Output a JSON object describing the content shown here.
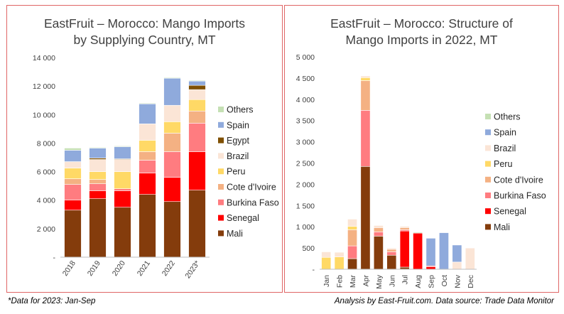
{
  "footnote": "*Data for 2023: Jan-Sep",
  "source": "Analysis by East-Fruit.com. Data source: Trade Data Monitor",
  "chart_data": [
    {
      "type": "bar",
      "stacked": true,
      "title_lines": [
        "EastFruit – Morocco: Mango Imports",
        "by Supplying Country, MT"
      ],
      "categories": [
        "2018",
        "2019",
        "2020",
        "2021",
        "2022",
        "2023*"
      ],
      "ylim": [
        0,
        14000
      ],
      "yticks": [
        0,
        2000,
        4000,
        6000,
        8000,
        10000,
        12000,
        14000
      ],
      "ytick_labels": [
        "-",
        "2 000",
        "4 000",
        "6 000",
        "8 000",
        "10 000",
        "12 000",
        "14 000"
      ],
      "legend_position": "right",
      "series": [
        {
          "name": "Mali",
          "color": "#843c0c",
          "values": [
            3300,
            4100,
            3500,
            4400,
            3900,
            4700
          ]
        },
        {
          "name": "Senegal",
          "color": "#ff0000",
          "values": [
            700,
            550,
            1150,
            1500,
            1700,
            2700
          ]
        },
        {
          "name": "Burkina Faso",
          "color": "#ff7c80",
          "values": [
            1100,
            500,
            150,
            900,
            1800,
            2000
          ]
        },
        {
          "name": "Cote d'Ivoire",
          "color": "#f4b183",
          "values": [
            400,
            300,
            0,
            600,
            1300,
            850
          ]
        },
        {
          "name": "Peru",
          "color": "#ffd966",
          "values": [
            750,
            550,
            1200,
            800,
            800,
            800
          ]
        },
        {
          "name": "Brazil",
          "color": "#fbe5d6",
          "values": [
            450,
            850,
            850,
            1150,
            1150,
            700
          ]
        },
        {
          "name": "Egypt",
          "color": "#7f4f00",
          "values": [
            0,
            100,
            50,
            0,
            0,
            300
          ]
        },
        {
          "name": "Spain",
          "color": "#8faadc",
          "values": [
            800,
            700,
            850,
            1400,
            1900,
            300
          ]
        },
        {
          "name": "Others",
          "color": "#c5e0b4",
          "values": [
            150,
            50,
            50,
            50,
            50,
            50
          ]
        }
      ]
    },
    {
      "type": "bar",
      "stacked": true,
      "title_lines": [
        "EastFruit – Morocco: Structure of",
        "Mango Imports in 2022, MT"
      ],
      "categories": [
        "Jan",
        "Feb",
        "Mar",
        "Apr",
        "May",
        "Jun",
        "Jul",
        "Aug",
        "Sep",
        "Oct",
        "Nov",
        "Dec"
      ],
      "ylim": [
        0,
        5000
      ],
      "yticks": [
        0,
        500,
        1000,
        1500,
        2000,
        2500,
        3000,
        3500,
        4000,
        4500,
        5000
      ],
      "ytick_labels": [
        "-",
        "500",
        "1 000",
        "1 500",
        "2 000",
        "2 500",
        "3 000",
        "3 500",
        "4 000",
        "4 500",
        "5 000"
      ],
      "legend_position": "right",
      "series": [
        {
          "name": "Mali",
          "color": "#843c0c",
          "values": [
            0,
            0,
            250,
            2420,
            780,
            330,
            50,
            0,
            0,
            0,
            0,
            0
          ]
        },
        {
          "name": "Senegal",
          "color": "#ff0000",
          "values": [
            0,
            0,
            0,
            0,
            0,
            0,
            850,
            850,
            60,
            0,
            0,
            0
          ]
        },
        {
          "name": "Burkina Faso",
          "color": "#ff7c80",
          "values": [
            0,
            0,
            300,
            1320,
            100,
            80,
            30,
            0,
            20,
            0,
            0,
            0
          ]
        },
        {
          "name": "Cote d'Ivoire",
          "color": "#f4b183",
          "values": [
            0,
            0,
            380,
            700,
            100,
            60,
            50,
            0,
            0,
            0,
            0,
            0
          ]
        },
        {
          "name": "Peru",
          "color": "#ffd966",
          "values": [
            280,
            290,
            80,
            70,
            0,
            0,
            0,
            0,
            0,
            0,
            0,
            0
          ]
        },
        {
          "name": "Brazil",
          "color": "#fbe5d6",
          "values": [
            130,
            110,
            170,
            40,
            50,
            30,
            30,
            0,
            0,
            0,
            170,
            500
          ]
        },
        {
          "name": "Spain",
          "color": "#8faadc",
          "values": [
            0,
            0,
            0,
            0,
            0,
            0,
            0,
            0,
            650,
            860,
            400,
            0
          ]
        },
        {
          "name": "Others",
          "color": "#c5e0b4",
          "values": [
            0,
            0,
            0,
            0,
            0,
            0,
            0,
            20,
            0,
            0,
            0,
            0
          ]
        }
      ]
    }
  ]
}
